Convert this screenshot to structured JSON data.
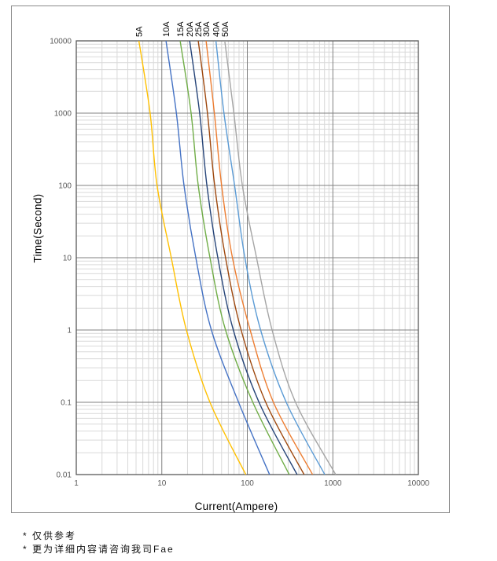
{
  "chart_data": {
    "type": "line",
    "title": "",
    "xlabel": "Current(Ampere)",
    "ylabel": "Time(Second)",
    "x_scale": "log",
    "y_scale": "log",
    "xlim": [
      1,
      10000
    ],
    "ylim": [
      0.01,
      10000
    ],
    "x_ticks": [
      "1",
      "10",
      "100",
      "1000",
      "10000"
    ],
    "y_ticks": [
      "10000",
      "1000",
      "100",
      "10",
      "1",
      "0.1",
      "0.01"
    ],
    "grid": "log major and minor, both axes",
    "legend_position": "labels rotated above each curve at top",
    "times_seconds": [
      10000,
      1000,
      100,
      10,
      1,
      0.1,
      0.01
    ],
    "series": [
      {
        "name": "5A",
        "color": "#FFC000",
        "currents_amps": [
          5.4,
          7.3,
          8.8,
          12.9,
          19.4,
          36.6,
          96
        ]
      },
      {
        "name": "10A",
        "color": "#4472C4",
        "currents_amps": [
          11.2,
          14.8,
          18.2,
          25,
          38,
          79,
          182
        ]
      },
      {
        "name": "15A",
        "color": "#70AD47",
        "currents_amps": [
          16.4,
          22,
          26.7,
          36.6,
          55.6,
          116,
          309
        ]
      },
      {
        "name": "20A",
        "color": "#264478",
        "currents_amps": [
          21.2,
          27.7,
          33.7,
          45.2,
          68.6,
          137,
          382
        ]
      },
      {
        "name": "25A",
        "color": "#9E480E",
        "currents_amps": [
          26.7,
          34.2,
          41.5,
          55.6,
          84.6,
          164,
          461
        ]
      },
      {
        "name": "30A",
        "color": "#ED7D31",
        "currents_amps": [
          33,
          41.2,
          50,
          67,
          108,
          202,
          580
        ]
      },
      {
        "name": "40A",
        "color": "#5B9BD5",
        "currents_amps": [
          43,
          53.3,
          71,
          93.6,
          143,
          285,
          805
        ]
      },
      {
        "name": "50A",
        "color": "#A5A5A5",
        "currents_amps": [
          54.5,
          69.6,
          87.6,
          128,
          195,
          366,
          1080
        ]
      }
    ]
  },
  "footnotes": [
    "* 仅供参考",
    "* 更为详细内容请咨询我司Fae"
  ],
  "style": {
    "minor_grid_color": "#D9D9D9",
    "major_grid_color": "#808080",
    "plot_border_color": "#595959",
    "tick_label_color": "#595959",
    "outer_border_color": "#8a8a8a",
    "curve_width": 1.4
  }
}
